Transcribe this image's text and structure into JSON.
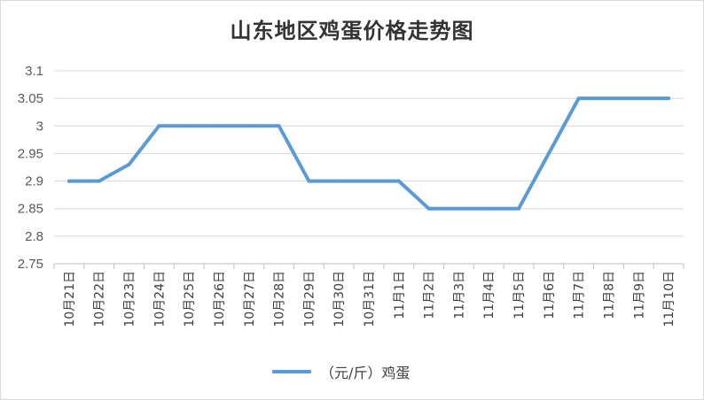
{
  "chart_data": {
    "type": "line",
    "title": "山东地区鸡蛋价格走势图",
    "categories": [
      "10月21日",
      "10月22日",
      "10月23日",
      "10月24日",
      "10月25日",
      "10月26日",
      "10月27日",
      "10月28日",
      "10月29日",
      "10月30日",
      "10月31日",
      "11月1日",
      "11月2日",
      "11月3日",
      "11月4日",
      "11月5日",
      "11月6日",
      "11月7日",
      "11月8日",
      "11月9日",
      "11月10日"
    ],
    "series": [
      {
        "name": "（元/斤）鸡蛋",
        "values": [
          2.9,
          2.9,
          2.93,
          3.0,
          3.0,
          3.0,
          3.0,
          3.0,
          2.9,
          2.9,
          2.9,
          2.9,
          2.85,
          2.85,
          2.85,
          2.85,
          2.95,
          3.05,
          3.05,
          3.05,
          3.05
        ],
        "color": "#5b9bd5"
      }
    ],
    "ylim": [
      2.75,
      3.1
    ],
    "yticks": [
      "2.75",
      "2.8",
      "2.85",
      "2.9",
      "2.95",
      "3",
      "3.05",
      "3.1"
    ],
    "grid": true,
    "legend_position": "bottom"
  }
}
